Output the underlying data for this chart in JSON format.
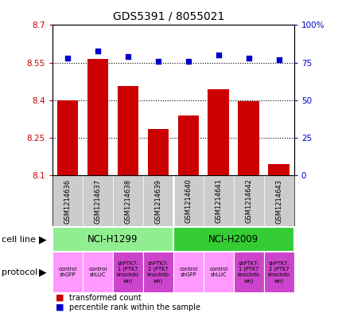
{
  "title": "GDS5391 / 8055021",
  "samples": [
    "GSM1214636",
    "GSM1214637",
    "GSM1214638",
    "GSM1214639",
    "GSM1214640",
    "GSM1214641",
    "GSM1214642",
    "GSM1214643"
  ],
  "bar_values": [
    8.4,
    8.565,
    8.455,
    8.285,
    8.34,
    8.445,
    8.395,
    8.145
  ],
  "bar_bottom": 8.1,
  "dot_values": [
    78,
    83,
    79,
    76,
    76,
    80,
    78,
    77
  ],
  "bar_color": "#cc0000",
  "dot_color": "#0000cc",
  "ylim_left": [
    8.1,
    8.7
  ],
  "ylim_right": [
    0,
    100
  ],
  "yticks_left": [
    8.1,
    8.25,
    8.4,
    8.55,
    8.7
  ],
  "yticks_right": [
    0,
    25,
    50,
    75,
    100
  ],
  "ytick_labels_left": [
    "8.1",
    "8.25",
    "8.4",
    "8.55",
    "8.7"
  ],
  "ytick_labels_right": [
    "0",
    "25",
    "50",
    "75",
    "100%"
  ],
  "left_tick_color": "#cc0000",
  "right_tick_color": "#0000cc",
  "cell_line_groups": [
    {
      "label": "NCI-H1299",
      "start": 0,
      "end": 3,
      "color": "#90ee90"
    },
    {
      "label": "NCI-H2009",
      "start": 4,
      "end": 7,
      "color": "#33cc33"
    }
  ],
  "protocol_colors": [
    "#ff99ff",
    "#ff99ff",
    "#cc44cc",
    "#cc44cc",
    "#ff99ff",
    "#ff99ff",
    "#cc44cc",
    "#cc44cc"
  ],
  "protocol_labels": [
    "control\nshGFP",
    "control\nshLUC",
    "shPTK7-\n1 (PTK7\nknockdo\nwn)",
    "shPTK7-\n2 (PTK7\nknockdo\nwn)",
    "control\nshGFP",
    "control\nshLUC",
    "shPTK7-\n1 (PTK7\nknockdo\nwn)",
    "shPTK7-\n2 (PTK7\nknockdo\nwn)"
  ],
  "legend_bar_label": "transformed count",
  "legend_dot_label": "percentile rank within the sample",
  "cell_line_label": "cell line",
  "protocol_label": "protocol",
  "sample_bg": "#cccccc",
  "fig_bg": "#ffffff"
}
